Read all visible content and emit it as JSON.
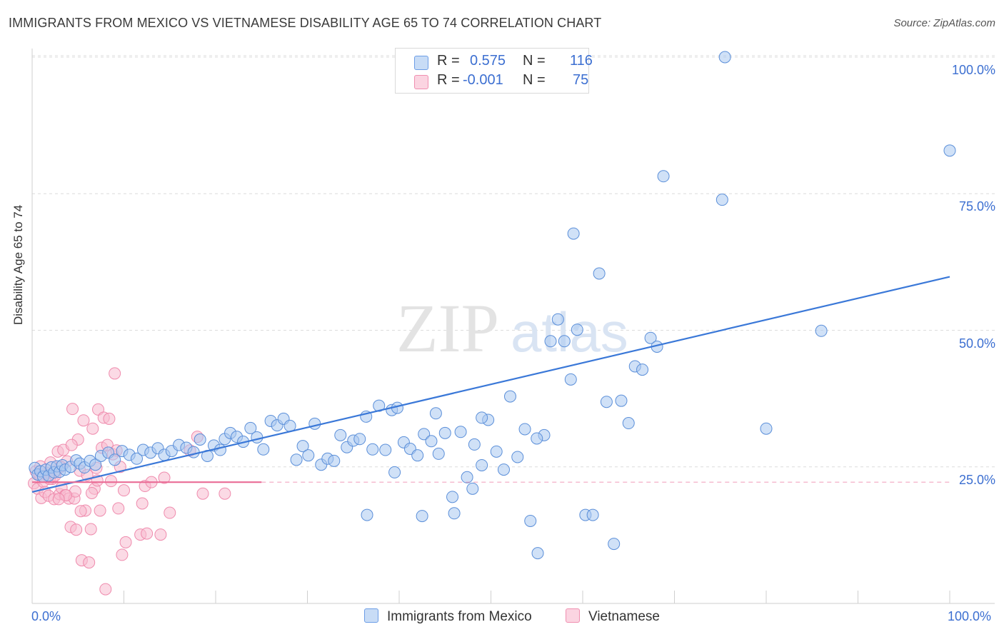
{
  "header": {
    "title": "IMMIGRANTS FROM MEXICO VS VIETNAMESE DISABILITY AGE 65 TO 74 CORRELATION CHART",
    "source": "Source: ZipAtlas.com"
  },
  "watermark": {
    "zip": "ZIP",
    "atlas": "atlas"
  },
  "stats": [
    {
      "r_label": "R =",
      "r_value": "0.575",
      "n_label": "N =",
      "n_value": "116",
      "color": "#6c9de6"
    },
    {
      "r_label": "R =",
      "r_value": "-0.001",
      "n_label": "N =",
      "n_value": "75",
      "color": "#f08fb0"
    }
  ],
  "legend": [
    {
      "label": "Immigrants from Mexico",
      "color": "#6c9de6"
    },
    {
      "label": "Vietnamese",
      "color": "#f08fb0"
    }
  ],
  "colors": {
    "blue_fill": "#aac8f0",
    "blue_stroke": "#5b8fd9",
    "blue_line": "#3a78d8",
    "pink_fill": "#f7bcd0",
    "pink_stroke": "#ef8bad",
    "pink_line": "#ea6d96",
    "axis_text": "#3c6fd1",
    "grid": "#dcdcdc"
  },
  "chart_data": {
    "type": "scatter",
    "title": "IMMIGRANTS FROM MEXICO VS VIETNAMESE DISABILITY AGE 65 TO 74 CORRELATION CHART",
    "xlabel": "",
    "ylabel": "Disability Age 65 to 74",
    "x_tick_labels": [
      "0.0%",
      "100.0%"
    ],
    "y_tick_labels": [
      "25.0%",
      "50.0%",
      "75.0%",
      "100.0%"
    ],
    "y_ticks": [
      25,
      50,
      75,
      100
    ],
    "xlim": [
      0,
      100
    ],
    "ylim": [
      0,
      100
    ],
    "grid": true,
    "legend_position": "bottom",
    "series": [
      {
        "name": "Immigrants from Mexico",
        "trendline": [
          [
            0,
            20.4
          ],
          [
            100,
            59.8
          ]
        ],
        "points": [
          [
            0.3,
            24.8
          ],
          [
            0.6,
            23.6
          ],
          [
            0.9,
            24.2
          ],
          [
            1.2,
            23.2
          ],
          [
            1.5,
            24.5
          ],
          [
            1.8,
            23.4
          ],
          [
            2.1,
            24.9
          ],
          [
            2.4,
            24.0
          ],
          [
            2.7,
            25.1
          ],
          [
            3.0,
            24.1
          ],
          [
            3.3,
            25.3
          ],
          [
            3.6,
            24.5
          ],
          [
            4.2,
            25.0
          ],
          [
            4.8,
            26.2
          ],
          [
            5.2,
            25.6
          ],
          [
            5.7,
            24.9
          ],
          [
            6.3,
            26.1
          ],
          [
            6.9,
            25.4
          ],
          [
            7.5,
            27.0
          ],
          [
            8.3,
            27.6
          ],
          [
            9.0,
            26.3
          ],
          [
            9.8,
            27.9
          ],
          [
            10.6,
            27.2
          ],
          [
            11.4,
            26.5
          ],
          [
            12.1,
            28.1
          ],
          [
            12.9,
            27.6
          ],
          [
            13.7,
            28.4
          ],
          [
            14.4,
            27.2
          ],
          [
            15.2,
            27.9
          ],
          [
            16.0,
            29.0
          ],
          [
            16.8,
            28.5
          ],
          [
            17.6,
            27.7
          ],
          [
            18.3,
            30.0
          ],
          [
            19.1,
            27.0
          ],
          [
            19.8,
            28.9
          ],
          [
            20.5,
            28.1
          ],
          [
            21.0,
            30.1
          ],
          [
            21.6,
            31.2
          ],
          [
            22.3,
            30.5
          ],
          [
            23.0,
            29.6
          ],
          [
            23.8,
            32.1
          ],
          [
            24.5,
            30.4
          ],
          [
            25.2,
            28.2
          ],
          [
            26.0,
            33.4
          ],
          [
            26.7,
            32.6
          ],
          [
            27.4,
            33.8
          ],
          [
            28.1,
            32.5
          ],
          [
            28.8,
            26.3
          ],
          [
            29.5,
            28.8
          ],
          [
            30.1,
            27.1
          ],
          [
            30.8,
            32.9
          ],
          [
            31.5,
            25.4
          ],
          [
            32.2,
            26.5
          ],
          [
            32.9,
            26.1
          ],
          [
            33.6,
            30.8
          ],
          [
            34.3,
            28.6
          ],
          [
            35.0,
            29.8
          ],
          [
            35.7,
            30.1
          ],
          [
            36.4,
            34.2
          ],
          [
            37.1,
            28.2
          ],
          [
            37.8,
            36.2
          ],
          [
            38.5,
            28.1
          ],
          [
            39.2,
            35.4
          ],
          [
            39.8,
            35.8
          ],
          [
            40.5,
            29.5
          ],
          [
            41.2,
            28.3
          ],
          [
            42.0,
            27.1
          ],
          [
            42.7,
            31.0
          ],
          [
            43.5,
            29.7
          ],
          [
            44.3,
            27.4
          ],
          [
            45.0,
            31.2
          ],
          [
            45.8,
            19.5
          ],
          [
            46.7,
            31.4
          ],
          [
            47.4,
            23.1
          ],
          [
            48.2,
            29.1
          ],
          [
            49.0,
            25.3
          ],
          [
            49.7,
            33.6
          ],
          [
            50.6,
            27.8
          ],
          [
            51.4,
            24.5
          ],
          [
            52.1,
            37.9
          ],
          [
            52.9,
            26.8
          ],
          [
            53.7,
            31.9
          ],
          [
            54.3,
            15.1
          ],
          [
            55.1,
            9.2
          ],
          [
            55.8,
            30.8
          ],
          [
            56.5,
            48.0
          ],
          [
            57.3,
            52.0
          ],
          [
            58.0,
            48.0
          ],
          [
            58.7,
            41.0
          ],
          [
            59.4,
            50.1
          ],
          [
            60.3,
            16.2
          ],
          [
            61.1,
            16.2
          ],
          [
            61.8,
            60.4
          ],
          [
            62.6,
            36.9
          ],
          [
            63.4,
            10.9
          ],
          [
            64.2,
            37.1
          ],
          [
            65.0,
            33.0
          ],
          [
            65.7,
            43.4
          ],
          [
            66.5,
            42.8
          ],
          [
            67.4,
            48.6
          ],
          [
            68.1,
            47.0
          ],
          [
            68.8,
            78.2
          ],
          [
            75.2,
            73.9
          ],
          [
            80.0,
            32.0
          ],
          [
            49.0,
            34.0
          ],
          [
            46.0,
            16.5
          ],
          [
            36.5,
            16.2
          ],
          [
            39.5,
            24.0
          ],
          [
            55.0,
            30.2
          ],
          [
            42.5,
            16.0
          ],
          [
            59.0,
            67.7
          ],
          [
            86.0,
            49.9
          ],
          [
            75.5,
            100.0
          ],
          [
            100.0,
            82.9
          ],
          [
            44.0,
            34.8
          ],
          [
            48.0,
            21.0
          ]
        ]
      },
      {
        "name": "Vietnamese",
        "trendline": [
          [
            0,
            22.2
          ],
          [
            25,
            22.2
          ]
        ],
        "points": [
          [
            0.2,
            22.0
          ],
          [
            0.4,
            24.2
          ],
          [
            0.6,
            21.0
          ],
          [
            0.8,
            23.5
          ],
          [
            1.0,
            19.3
          ],
          [
            1.2,
            22.3
          ],
          [
            1.4,
            20.4
          ],
          [
            1.6,
            23.8
          ],
          [
            1.8,
            19.7
          ],
          [
            2.0,
            25.8
          ],
          [
            2.2,
            22.8
          ],
          [
            2.4,
            19.1
          ],
          [
            2.6,
            24.2
          ],
          [
            2.8,
            27.8
          ],
          [
            3.0,
            20.0
          ],
          [
            3.2,
            21.2
          ],
          [
            3.4,
            28.1
          ],
          [
            3.6,
            19.8
          ],
          [
            3.8,
            26.0
          ],
          [
            4.0,
            19.2
          ],
          [
            4.2,
            14.0
          ],
          [
            4.4,
            35.6
          ],
          [
            4.6,
            19.2
          ],
          [
            4.8,
            13.5
          ],
          [
            5.0,
            30.0
          ],
          [
            5.2,
            24.3
          ],
          [
            5.4,
            7.9
          ],
          [
            5.6,
            33.5
          ],
          [
            5.8,
            17.0
          ],
          [
            6.0,
            23.5
          ],
          [
            6.2,
            7.5
          ],
          [
            6.4,
            13.6
          ],
          [
            6.6,
            32.0
          ],
          [
            6.8,
            21.0
          ],
          [
            7.0,
            24.8
          ],
          [
            7.2,
            35.5
          ],
          [
            7.4,
            17.0
          ],
          [
            7.6,
            28.5
          ],
          [
            7.8,
            34.0
          ],
          [
            8.0,
            2.6
          ],
          [
            8.2,
            29.0
          ],
          [
            8.4,
            33.8
          ],
          [
            8.6,
            22.4
          ],
          [
            8.8,
            27.3
          ],
          [
            9.0,
            42.1
          ],
          [
            9.2,
            28.0
          ],
          [
            9.4,
            17.4
          ],
          [
            9.6,
            25.0
          ],
          [
            9.8,
            8.9
          ],
          [
            10.0,
            20.7
          ],
          [
            10.2,
            11.2
          ],
          [
            11.8,
            12.6
          ],
          [
            12.0,
            18.3
          ],
          [
            12.3,
            21.5
          ],
          [
            12.5,
            12.8
          ],
          [
            13.0,
            22.2
          ],
          [
            14.0,
            12.6
          ],
          [
            14.4,
            23.0
          ],
          [
            15.0,
            16.6
          ],
          [
            17.2,
            28.0
          ],
          [
            18.0,
            30.5
          ],
          [
            18.6,
            20.1
          ],
          [
            21.0,
            20.1
          ],
          [
            4.7,
            20.5
          ],
          [
            3.7,
            19.8
          ],
          [
            2.9,
            19.1
          ],
          [
            5.3,
            16.9
          ],
          [
            6.5,
            20.2
          ],
          [
            1.1,
            24.0
          ],
          [
            1.9,
            22.8
          ],
          [
            3.1,
            25.0
          ],
          [
            4.3,
            29.0
          ],
          [
            0.9,
            25.1
          ],
          [
            2.5,
            23.4
          ],
          [
            7.1,
            22.5
          ]
        ]
      }
    ]
  }
}
